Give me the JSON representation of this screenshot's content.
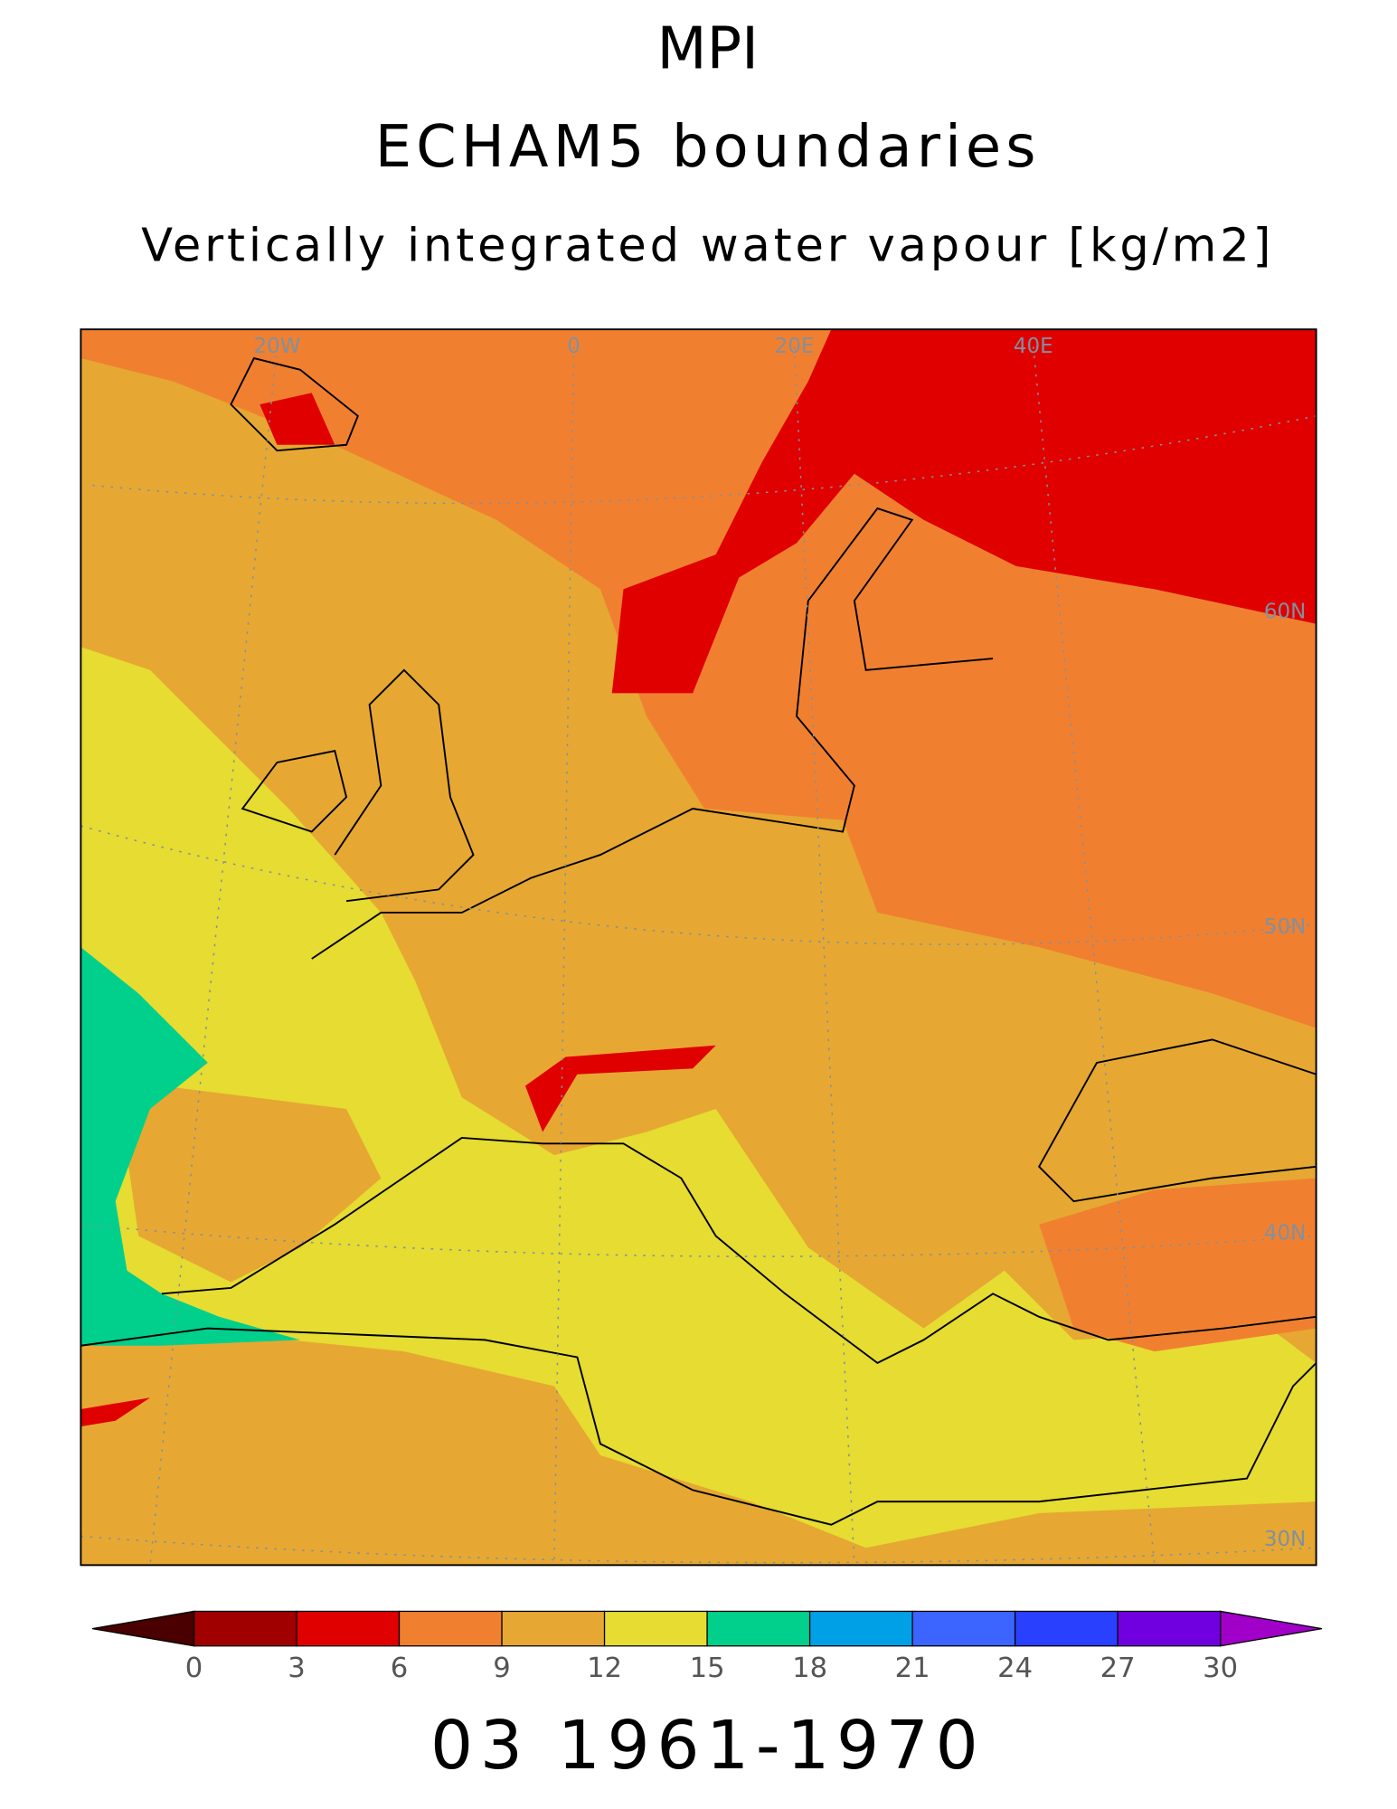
{
  "header": {
    "title": "MPI",
    "subtitle": "ECHAM5 boundaries",
    "variable": "Vertically integrated water vapour [kg/m2]"
  },
  "map": {
    "grid_labels": [
      "20W",
      "0",
      "20E",
      "40E",
      "60N",
      "50N",
      "40N",
      "30N"
    ]
  },
  "colorbar": {
    "levels": [
      0,
      3,
      6,
      9,
      12,
      15,
      18,
      21,
      24,
      27,
      30
    ],
    "colors": [
      "#a00000",
      "#e00000",
      "#f08030",
      "#e6a832",
      "#e6dc32",
      "#00d08c",
      "#00a0e6",
      "#3c64ff",
      "#2a40ff",
      "#7000e0"
    ],
    "under_color": "#4a0000",
    "over_color": "#a000c8"
  },
  "footer": {
    "period": "03 1961-1970"
  }
}
